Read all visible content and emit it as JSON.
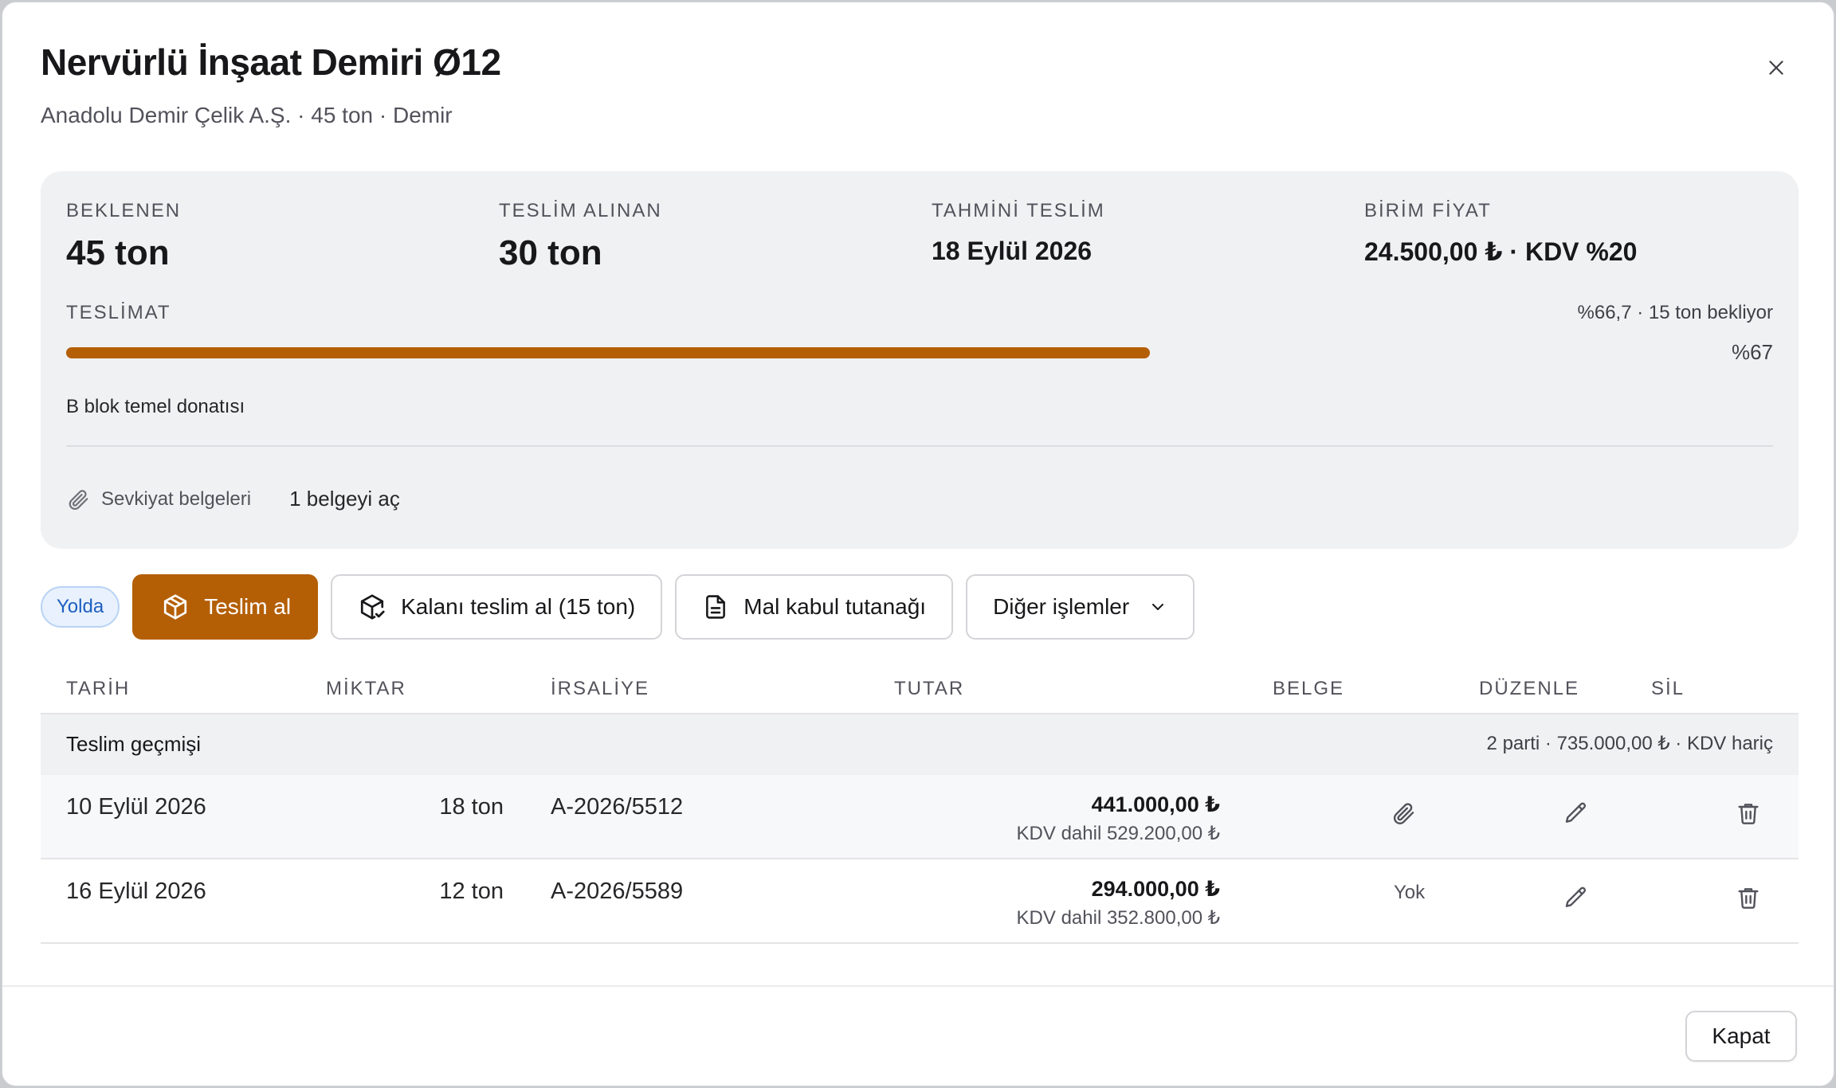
{
  "header": {
    "title": "Nervürlü İnşaat Demiri Ø12",
    "subtitle": "Anadolu Demir Çelik A.Ş. · 45 ton · Demir",
    "close_icon": "close-icon"
  },
  "summary": {
    "stats": [
      {
        "label": "BEKLENEN",
        "value": "45 ton"
      },
      {
        "label": "TESLİM ALINAN",
        "value": "30 ton"
      },
      {
        "label": "TAHMİNİ TESLİM",
        "value": "18 Eylül 2026"
      },
      {
        "label": "BİRİM FİYAT",
        "value": "24.500,00 ₺ · KDV %20"
      }
    ],
    "delivery_label": "TESLİMAT",
    "delivery_status": "%66,7 · 15 ton bekliyor",
    "delivery_progress": 0.667,
    "delivery_percent": "%67",
    "note": "B blok temel donatısı",
    "docs_label": "Sevkiyat belgeleri",
    "docs_link": "1 belgeyi aç"
  },
  "actions": {
    "status_badge": "Yolda",
    "receive": "Teslim al",
    "receive_rest": "Kalanı teslim al (15 ton)",
    "acceptance_report": "Mal kabul tutanağı",
    "more": "Diğer işlemler"
  },
  "table": {
    "columns": [
      "TARİH",
      "MİKTAR",
      "İRSALİYE",
      "TUTAR",
      "BELGE",
      "DÜZENLE",
      "SİL"
    ],
    "group_title": "Teslim geçmişi",
    "group_summary": "2 parti · 735.000,00 ₺ · KDV hariç",
    "rows": [
      {
        "date": "10 Eylül 2026",
        "qty": "18 ton",
        "waybill": "A-2026/5512",
        "amount": "441.000,00 ₺",
        "amount_vat": "KDV dahil 529.200,00 ₺",
        "document": ""
      },
      {
        "date": "16 Eylül 2026",
        "qty": "12 ton",
        "waybill": "A-2026/5589",
        "amount": "294.000,00 ₺",
        "amount_vat": "KDV dahil 352.800,00 ₺",
        "document": "Yok"
      }
    ]
  },
  "footer": {
    "close": "Kapat"
  },
  "colors": {
    "accent": "#b45f06",
    "badge_blue": "#1d5fbf",
    "card_bg": "#f0f1f3"
  }
}
